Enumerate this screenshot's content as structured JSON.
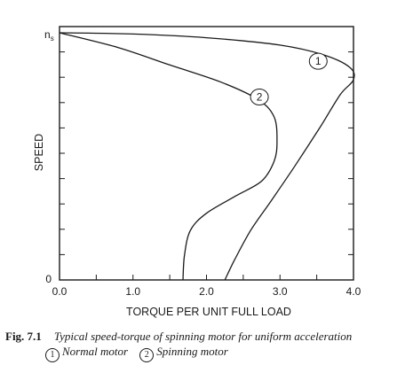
{
  "chart_data": {
    "type": "line",
    "title": "",
    "xlabel": "TORQUE PER UNIT FULL LOAD",
    "ylabel": "SPEED",
    "xlim": [
      0,
      4.0
    ],
    "ylim": [
      0,
      1.0
    ],
    "x_ticks": [
      "0.0",
      "1.0",
      "2.0",
      "3.0",
      "4.0"
    ],
    "y_tick_top": "n",
    "y_tick_top_sub": "s",
    "y_tick_bottom": "0",
    "grid": false,
    "series": [
      {
        "name": "1",
        "points": [
          [
            2.25,
            0.0
          ],
          [
            2.38,
            0.08
          ],
          [
            2.6,
            0.2
          ],
          [
            2.88,
            0.32
          ],
          [
            3.2,
            0.46
          ],
          [
            3.55,
            0.62
          ],
          [
            3.82,
            0.75
          ],
          [
            4.0,
            0.81
          ],
          [
            3.95,
            0.86
          ],
          [
            3.6,
            0.91
          ],
          [
            3.0,
            0.95
          ],
          [
            2.0,
            0.98
          ],
          [
            1.0,
            0.995
          ],
          [
            0.0,
            1.0
          ]
        ],
        "label_at": [
          3.52,
          0.885
        ]
      },
      {
        "name": "2",
        "points": [
          [
            1.68,
            0.0
          ],
          [
            1.7,
            0.1
          ],
          [
            1.78,
            0.2
          ],
          [
            2.0,
            0.27
          ],
          [
            2.4,
            0.34
          ],
          [
            2.75,
            0.4
          ],
          [
            2.92,
            0.48
          ],
          [
            2.96,
            0.56
          ],
          [
            2.92,
            0.66
          ],
          [
            2.7,
            0.73
          ],
          [
            2.2,
            0.8
          ],
          [
            1.5,
            0.87
          ],
          [
            0.8,
            0.94
          ],
          [
            0.0,
            1.0
          ]
        ],
        "label_at": [
          2.72,
          0.74
        ]
      }
    ]
  },
  "caption": {
    "fig_label": "Fig. 7.1",
    "text": "Typical speed-torque of spinning motor for uniform acceleration",
    "legend": [
      {
        "mark": "1",
        "text": "Normal motor"
      },
      {
        "mark": "2",
        "text": "Spinning motor"
      }
    ]
  }
}
